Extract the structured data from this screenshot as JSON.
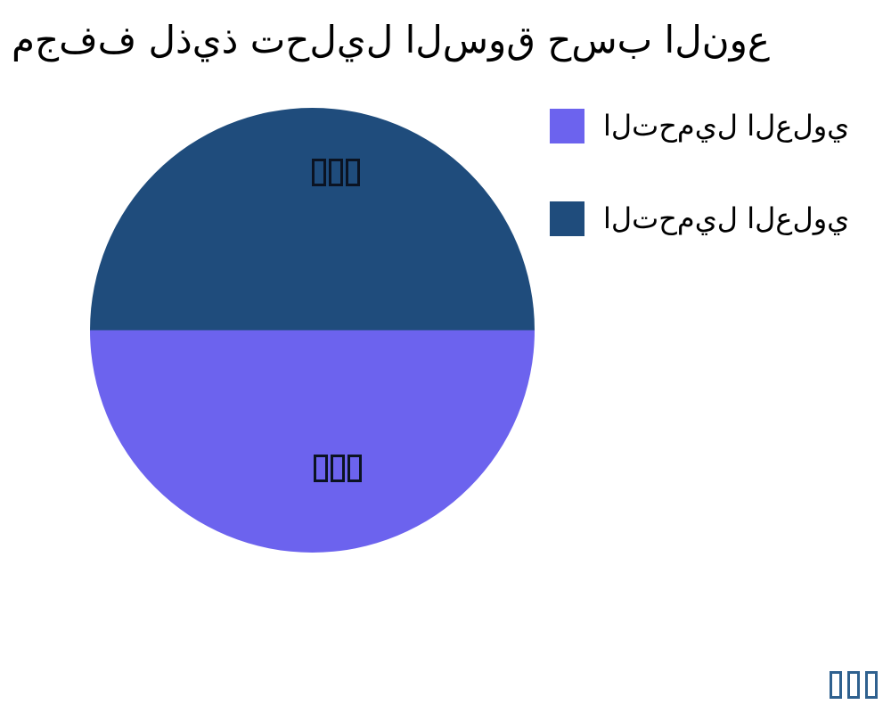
{
  "chart_data": {
    "type": "pie",
    "title": "مجفف لذيذ تحليل السوق حسب النوع",
    "slices": [
      {
        "label": "التحميل العلوي",
        "value": 50,
        "color": "#1F4C7C",
        "position": "top",
        "value_label": "□□□"
      },
      {
        "label": "التحميل العلوي",
        "value": 50,
        "color": "#6C63EE",
        "position": "bottom",
        "value_label": "□□□"
      }
    ],
    "values_unit": "percent",
    "legend_position": "right",
    "background": "#ffffff"
  },
  "legend": {
    "items": [
      {
        "label": "التحميل العلوي",
        "color": "#6C63EE"
      },
      {
        "label": "التحميل العلوي",
        "color": "#1F4C7C"
      }
    ]
  },
  "pie_labels": {
    "top": "□□□",
    "bottom": "□□□"
  },
  "watermark": {
    "text": "□□□"
  }
}
